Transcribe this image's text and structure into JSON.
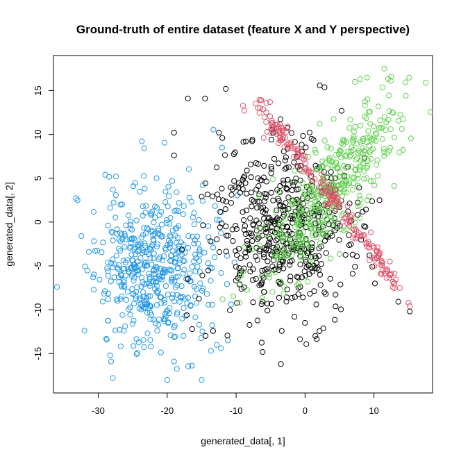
{
  "chart_data": {
    "type": "scatter",
    "title": "Ground-truth of entire dataset (feature X and Y perspective)",
    "xlabel": "generated_data[, 1]",
    "ylabel": "generated_data[, 2]",
    "xlim": [
      -36.5,
      18.5
    ],
    "ylim": [
      -19.5,
      19.0
    ],
    "x_ticks": [
      -30,
      -20,
      -10,
      0,
      10
    ],
    "y_ticks": [
      -15,
      -10,
      -5,
      0,
      5,
      10,
      15
    ],
    "x_tick_labels": [
      "-30",
      "-20",
      "-10",
      "0",
      "10"
    ],
    "y_tick_labels": [
      "-15",
      "-10",
      "-5",
      "0",
      "5",
      "10",
      "15"
    ],
    "grid": false,
    "legend": "none",
    "series": [
      {
        "color": "#2297E6",
        "distribution": {
          "center": [
            -22,
            -5
          ],
          "sd": [
            4.2,
            4.5
          ],
          "n": 500,
          "seed": 11
        },
        "points": [
          [
            -36,
            -7.4
          ],
          [
            -33,
            2.5
          ],
          [
            -29,
            5.4
          ],
          [
            -32,
            -12.4
          ],
          [
            -20,
            -18
          ],
          [
            -15,
            -18
          ],
          [
            -11.2,
            -13.5
          ],
          [
            -12.2,
            -14.4
          ],
          [
            -19,
            -15.9
          ],
          [
            -12.2,
            1.1
          ]
        ]
      },
      {
        "color": "#000000",
        "distribution": {
          "center": [
            -3.5,
            -1
          ],
          "sd": [
            5,
            5
          ],
          "n": 520,
          "seed": 23
        },
        "points": [
          [
            -17,
            14.1
          ],
          [
            -14.5,
            14.1
          ],
          [
            -12.5,
            10.2
          ],
          [
            -12,
            9.6
          ],
          [
            -3.5,
            -16.2
          ],
          [
            0,
            -11.5
          ],
          [
            1.5,
            -13
          ],
          [
            15.2,
            -10.2
          ],
          [
            -19,
            7.6
          ],
          [
            -19,
            10.2
          ],
          [
            -11.5,
            15.2
          ]
        ]
      },
      {
        "color": "#61D04F",
        "distribution": {
          "center": [
            4,
            4
          ],
          "axis": [
            0.71,
            0.71
          ],
          "sd_along": 7,
          "sd_across": 2.2,
          "n": 420,
          "seed": 37
        },
        "points": [
          [
            17.5,
            15.9
          ],
          [
            11.5,
            17.5
          ],
          [
            9,
            16.5
          ],
          [
            8,
            16.3
          ],
          [
            12.5,
            16.6
          ]
        ]
      },
      {
        "color": "#DF536B",
        "distribution": {
          "line": {
            "x": [
              -7,
              13.5
            ],
            "slope": -1.0,
            "intercept": 6.5
          },
          "jitter": 0.6,
          "n": 200,
          "seed": 53
        },
        "points": [
          [
            -9,
            13.3
          ],
          [
            -8.8,
            12.7
          ],
          [
            15,
            -9.2
          ],
          [
            15.2,
            -9.6
          ],
          [
            -5.5,
            10.3
          ],
          [
            -6,
            9.6
          ]
        ]
      }
    ]
  }
}
